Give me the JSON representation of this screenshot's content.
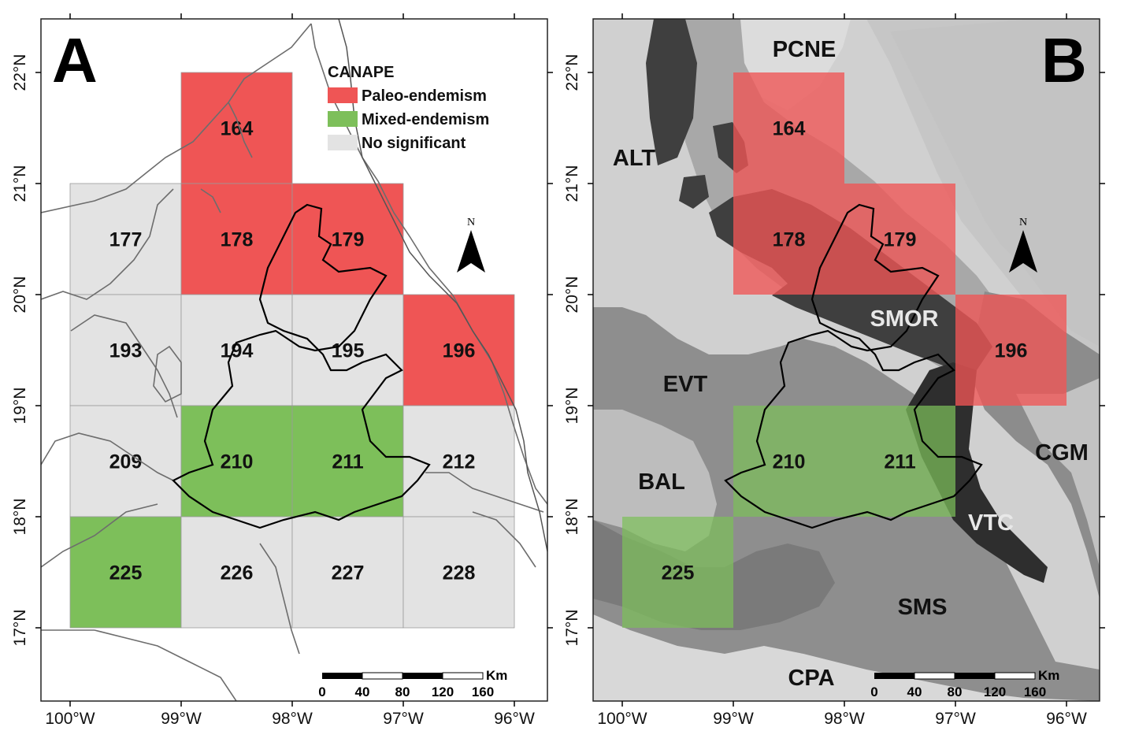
{
  "panels": [
    {
      "id": "A",
      "letter": "A",
      "legend": {
        "title": "CANAPE",
        "items": [
          {
            "label": "Paleo-endemism",
            "color": "#ef5555"
          },
          {
            "label": "Mixed-endemism",
            "color": "#7dbf5a"
          },
          {
            "label": "No significant",
            "color": "#e3e3e3"
          }
        ]
      },
      "cells": [
        {
          "id": "164",
          "class": "paleo",
          "lon": -99,
          "lat": 22
        },
        {
          "id": "177",
          "class": "none",
          "lon": -100,
          "lat": 21
        },
        {
          "id": "178",
          "class": "paleo",
          "lon": -99,
          "lat": 21
        },
        {
          "id": "179",
          "class": "paleo",
          "lon": -98,
          "lat": 21
        },
        {
          "id": "193",
          "class": "none",
          "lon": -100,
          "lat": 20
        },
        {
          "id": "194",
          "class": "none",
          "lon": -99,
          "lat": 20
        },
        {
          "id": "195",
          "class": "none",
          "lon": -98,
          "lat": 20
        },
        {
          "id": "196",
          "class": "paleo",
          "lon": -97,
          "lat": 20
        },
        {
          "id": "209",
          "class": "none",
          "lon": -100,
          "lat": 19
        },
        {
          "id": "210",
          "class": "mixed",
          "lon": -99,
          "lat": 19
        },
        {
          "id": "211",
          "class": "mixed",
          "lon": -98,
          "lat": 19
        },
        {
          "id": "212",
          "class": "none",
          "lon": -97,
          "lat": 19
        },
        {
          "id": "225",
          "class": "mixed",
          "lon": -100,
          "lat": 18
        },
        {
          "id": "226",
          "class": "none",
          "lon": -99,
          "lat": 18
        },
        {
          "id": "227",
          "class": "none",
          "lon": -98,
          "lat": 18
        },
        {
          "id": "228",
          "class": "none",
          "lon": -97,
          "lat": 18
        }
      ]
    },
    {
      "id": "B",
      "letter": "B",
      "regions": [
        "PCNE",
        "ALT",
        "SMOR",
        "EVT",
        "CGM",
        "BAL",
        "VTC",
        "SMS",
        "CPA"
      ],
      "cells": [
        {
          "id": "164",
          "class": "paleo",
          "lon": -99,
          "lat": 22
        },
        {
          "id": "178",
          "class": "paleo",
          "lon": -99,
          "lat": 21
        },
        {
          "id": "179",
          "class": "paleo",
          "lon": -98,
          "lat": 21
        },
        {
          "id": "196",
          "class": "paleo",
          "lon": -97,
          "lat": 20
        },
        {
          "id": "210",
          "class": "mixed",
          "lon": -99,
          "lat": 19
        },
        {
          "id": "211",
          "class": "mixed",
          "lon": -98,
          "lat": 19
        },
        {
          "id": "225",
          "class": "mixed",
          "lon": -100,
          "lat": 18
        }
      ]
    }
  ],
  "axes": {
    "lon_ticks": [
      "100°W",
      "99°W",
      "98°W",
      "97°W",
      "96°W"
    ],
    "lat_ticks": [
      "22°N",
      "21°N",
      "20°N",
      "19°N",
      "18°N",
      "17°N"
    ]
  },
  "north_arrow": "N",
  "scale_bar": {
    "unit": "Km",
    "ticks": [
      "0",
      "40",
      "80",
      "120",
      "160"
    ]
  }
}
